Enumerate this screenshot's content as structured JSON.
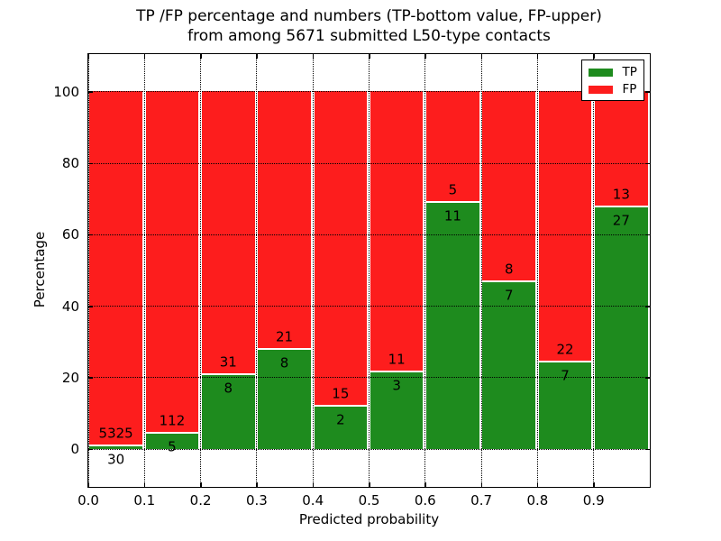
{
  "figure": {
    "title_line1": "TP /FP percentage and numbers (TP-bottom value, FP-upper)",
    "title_line2": "from among 5671 submitted L50-type contacts"
  },
  "chart_data": {
    "type": "bar",
    "stacked": true,
    "normalized": "each bin scaled to 100%",
    "title": "TP /FP percentage and numbers (TP-bottom value, FP-upper) from among 5671 submitted L50-type contacts",
    "xlabel": "Predicted probability",
    "ylabel": "Percentage",
    "total_contacts": 5671,
    "bins": [
      "0.0-0.1",
      "0.1-0.2",
      "0.2-0.3",
      "0.3-0.4",
      "0.4-0.5",
      "0.5-0.6",
      "0.6-0.7",
      "0.7-0.8",
      "0.8-0.9",
      "0.9-1.0"
    ],
    "series": [
      {
        "name": "TP",
        "color": "#1e8b1e",
        "counts": [
          30,
          5,
          8,
          8,
          2,
          3,
          11,
          7,
          7,
          27
        ]
      },
      {
        "name": "FP",
        "color": "#fd1d1d",
        "counts": [
          5325,
          112,
          31,
          21,
          15,
          11,
          5,
          8,
          22,
          13
        ]
      }
    ],
    "tp_percent_of_bin": [
      0.56,
      4.27,
      20.51,
      27.59,
      11.76,
      21.43,
      68.75,
      46.67,
      24.14,
      67.5
    ],
    "xticks": [
      "0.0",
      "0.1",
      "0.2",
      "0.3",
      "0.4",
      "0.5",
      "0.6",
      "0.7",
      "0.8",
      "0.9"
    ],
    "yticks": [
      0,
      20,
      40,
      60,
      80,
      100
    ],
    "xlim": [
      0.0,
      1.0
    ],
    "ylim": [
      -10.6,
      110.6
    ],
    "grid": "dotted",
    "legend": {
      "position": "upper right",
      "entries": [
        {
          "label": "TP",
          "color": "#1e8b1e"
        },
        {
          "label": "FP",
          "color": "#fd1d1d"
        }
      ]
    }
  }
}
